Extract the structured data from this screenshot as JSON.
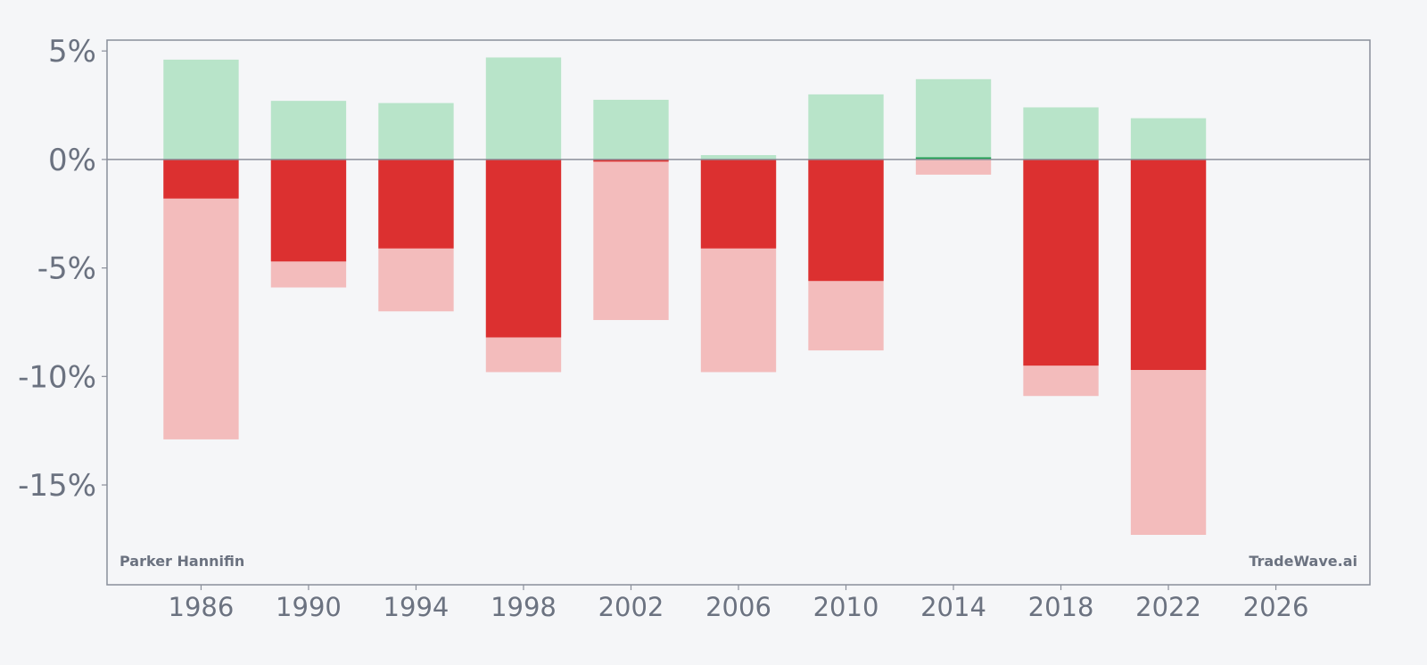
{
  "chart_data": {
    "type": "bar",
    "x_ticks": [
      "1986",
      "1990",
      "1994",
      "1998",
      "2002",
      "2006",
      "2010",
      "2014",
      "2018",
      "2022",
      "2026"
    ],
    "x_tick_values": [
      1986,
      1990,
      1994,
      1998,
      2002,
      2006,
      2010,
      2014,
      2018,
      2022,
      2026
    ],
    "y_ticks": [
      "5%",
      "0%",
      "-5%",
      "-10%",
      "-15%"
    ],
    "y_tick_values": [
      5,
      0,
      -5,
      -10,
      -15
    ],
    "xlim": [
      1982.5,
      2029.5
    ],
    "ylim": [
      -19.6,
      5.5
    ],
    "bar_width_years": 2.8,
    "x": [
      1986,
      1990,
      1994,
      1998,
      2002,
      2006,
      2010,
      2014,
      2018,
      2022
    ],
    "series": [
      {
        "values": [
          4.6,
          2.7,
          2.6,
          4.7,
          2.75,
          0.2,
          3.0,
          3.7,
          2.4,
          1.9
        ]
      },
      {
        "values": [
          0,
          0,
          0,
          0,
          0,
          0,
          0,
          0.1,
          0,
          0
        ]
      },
      {
        "values": [
          -1.8,
          -4.7,
          -4.1,
          -8.2,
          -0.1,
          -4.1,
          -5.6,
          0,
          -9.5,
          -9.7
        ]
      },
      {
        "values": [
          -12.9,
          -5.9,
          -7.0,
          -9.8,
          -7.4,
          -9.8,
          -8.8,
          -0.7,
          -10.9,
          -17.3
        ]
      }
    ],
    "colors": {
      "positive_light": "#b8e4c9",
      "positive_dark": "#22a055",
      "negative_dark": "#dc3030",
      "negative_light": "#f3bcbc",
      "axis": "#8a8f9a",
      "text": "#6b7280"
    },
    "grid": false
  },
  "watermarks": {
    "left": "Parker Hannifin",
    "right": "TradeWave.ai"
  }
}
